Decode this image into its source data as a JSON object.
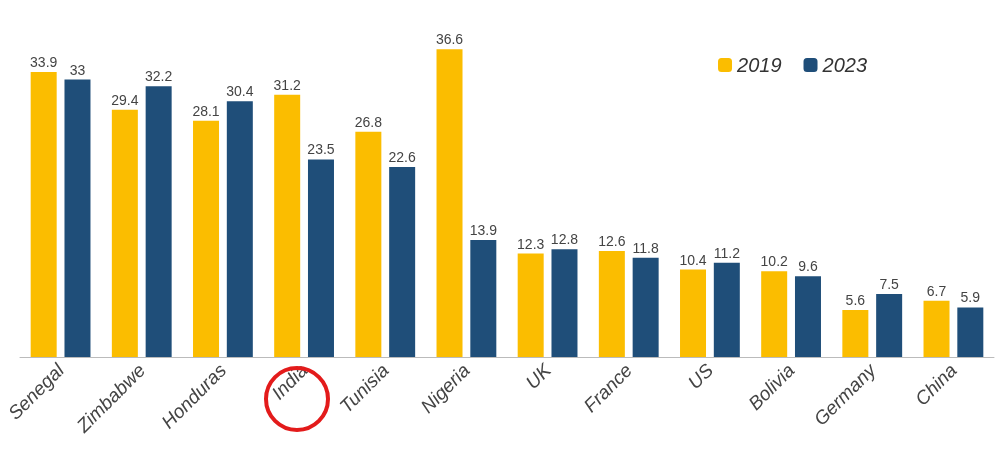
{
  "chart_data": {
    "type": "bar",
    "categories": [
      "Senegal",
      "Zimbabwe",
      "Honduras",
      "India",
      "Tunisia",
      "Nigeria",
      "UK",
      "France",
      "US",
      "Bolivia",
      "Germany",
      "China"
    ],
    "series": [
      {
        "name": "2019",
        "color": "#fbbd00",
        "values": [
          33.9,
          29.4,
          28.1,
          31.2,
          26.8,
          36.6,
          12.3,
          12.6,
          10.4,
          10.2,
          5.6,
          6.7
        ]
      },
      {
        "name": "2023",
        "color": "#1f4e79",
        "values": [
          33,
          32.2,
          30.4,
          23.5,
          22.6,
          13.9,
          12.8,
          11.8,
          11.2,
          9.6,
          7.5,
          5.9
        ]
      }
    ],
    "data_labels": true,
    "legend": "top right",
    "grid": false
  }
}
